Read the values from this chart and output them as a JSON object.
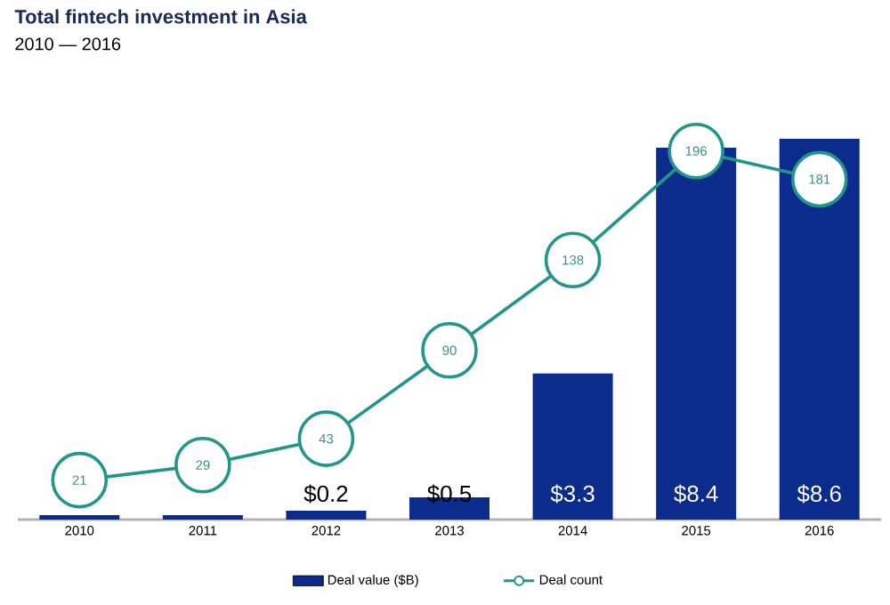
{
  "chart_data": {
    "type": "bar",
    "title": "Total fintech investment in Asia",
    "subtitle": "2010 — 2016",
    "categories": [
      "2010",
      "2011",
      "2012",
      "2013",
      "2014",
      "2015",
      "2016"
    ],
    "series": [
      {
        "name": "Deal value ($B)",
        "color": "#0b2c8c",
        "values": [
          0.1,
          0.1,
          0.2,
          0.5,
          3.3,
          8.4,
          8.6
        ],
        "value_labels": [
          null,
          null,
          "$0.2",
          "$0.5",
          "$3.3",
          "$8.4",
          "$8.6"
        ]
      },
      {
        "name": "Deal count",
        "type": "line",
        "axis": "y2",
        "color": "#21968a",
        "marker": "circle",
        "line_style": "solid",
        "values": [
          21,
          29,
          43,
          90,
          138,
          196,
          181
        ],
        "value_labels": [
          "21",
          "29",
          "43",
          "90",
          "138",
          "196",
          "181"
        ]
      }
    ],
    "legend": "bottom"
  }
}
